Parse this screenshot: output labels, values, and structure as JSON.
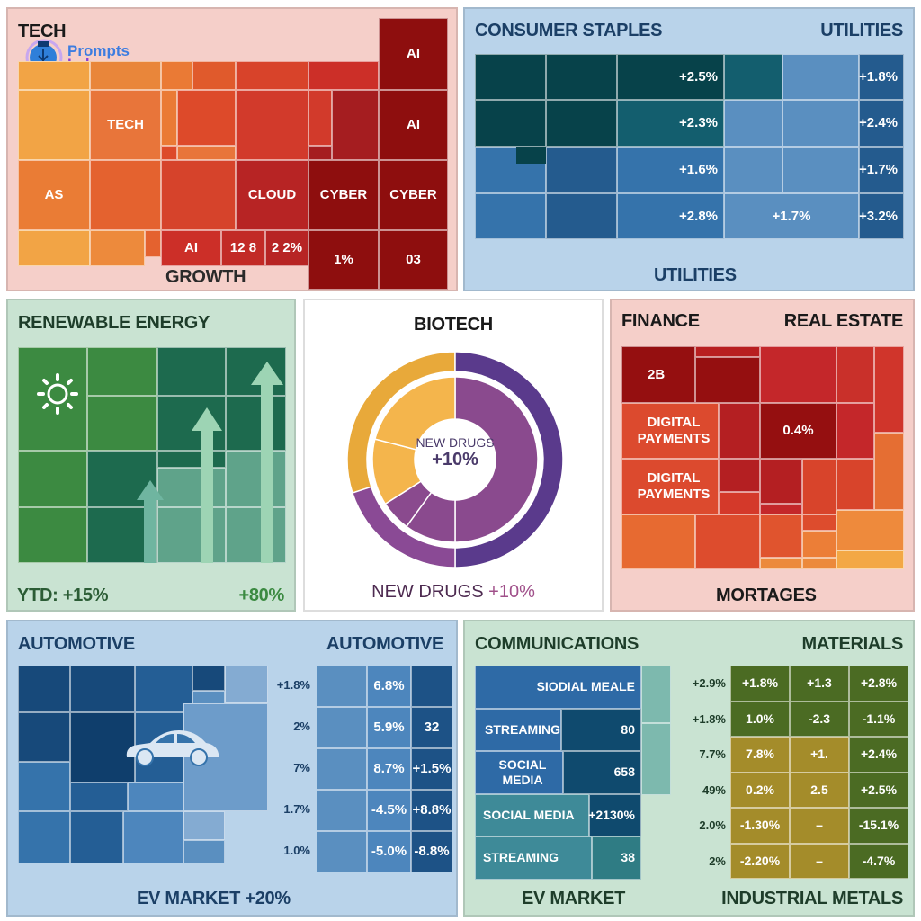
{
  "logo": {
    "line1": "Prompts",
    "line2": "Lab"
  },
  "colors": {
    "tech_bg": "#f5cfc9",
    "staples_bg": "#b9d3ea",
    "energy_bg": "#c9e3d2",
    "biotech_bg": "#ffffff",
    "finance_bg": "#f5cfc9",
    "auto_bg": "#b9d3ea",
    "comm_bg": "#c9e3d2"
  },
  "chart_data": [
    {
      "type": "heatmap",
      "title": "TECH",
      "footer": "GROWTH",
      "labels": [
        "AI",
        "TECH",
        "AI",
        "AS",
        "CLOUD",
        "CYBER",
        "CYBER",
        "AI",
        "12 8",
        "2 2%",
        "1%",
        "03"
      ]
    },
    {
      "type": "heatmap",
      "title": "CONSUMER STAPLES",
      "title_right": "UTILITIES",
      "footer": "UTILITIES",
      "rows": [
        {
          "mid": "+2.5%",
          "right": "+1.8%"
        },
        {
          "mid": "+2.3%",
          "right": "+2.4%"
        },
        {
          "mid": "+1.6%",
          "right": "+1.7%"
        },
        {
          "mid": "+2.8%",
          "util": "+1.7%",
          "right": "+3.2%"
        }
      ]
    },
    {
      "type": "heatmap",
      "title": "RENEWABLE ENERGY",
      "footer_left": "YTD: +15%",
      "footer_right": "+80%",
      "icon": "sun-icon"
    },
    {
      "type": "pie",
      "title": "BIOTECH",
      "center_label": "NEW DRUGS",
      "center_value": "+10%",
      "footer_label": "NEW DRUGS",
      "footer_value": "+10%",
      "outer_ring": [
        {
          "name": "orange",
          "value": 0.3,
          "color": "#e8a93a"
        },
        {
          "name": "dark-purple",
          "value": 0.5,
          "color": "#5a3a8c"
        },
        {
          "name": "purple",
          "value": 0.2,
          "color": "#8a4a95"
        }
      ],
      "inner_ring": [
        {
          "name": "purple-large",
          "value": 0.5,
          "color": "#8a4a8e"
        },
        {
          "name": "purple-mid",
          "value": 0.1,
          "color": "#8a4a8e"
        },
        {
          "name": "purple-small",
          "value": 0.06,
          "color": "#8a4a8e"
        },
        {
          "name": "orange-small",
          "value": 0.13,
          "color": "#f4b54c"
        },
        {
          "name": "orange-large",
          "value": 0.21,
          "color": "#f4b54c"
        }
      ]
    },
    {
      "type": "heatmap",
      "title": "FINANCE",
      "title_right": "REAL ESTATE",
      "footer": "MORTAGES",
      "labels": [
        "2B",
        "DIGITAL PAYMENTS",
        "DIGITAL PAYMENTS",
        "0.4%"
      ]
    },
    {
      "type": "heatmap",
      "title": "AUTOMOTIVE",
      "title_right": "AUTOMOTIVE",
      "footer": "EV MARKET +20%",
      "icon": "car-icon",
      "row_labels": [
        "+1.8%",
        "2%",
        "7%",
        "1.7%",
        "1.0%"
      ],
      "col2": [
        "6.8%",
        "5.9%",
        "8.7%",
        "-4.5%",
        "-5.0%"
      ],
      "col3": [
        "",
        "32",
        "+1.5%",
        "+8.8%",
        "-8.8%"
      ]
    },
    {
      "type": "heatmap",
      "title": "COMMUNICATIONS",
      "title_right": "MATERIALS",
      "footer_left": "EV MARKET",
      "footer_right": "INDUSTRIAL METALS",
      "comm_rows": [
        {
          "label": "SIODIAL MEALE",
          "value": ""
        },
        {
          "label": "STREAMING",
          "value": "80"
        },
        {
          "label": "SOCIAL MEDIA",
          "value": "658"
        },
        {
          "label": "SOCIAL MEDIA",
          "value": "+2130%"
        },
        {
          "label": "STREAMING",
          "value": "38"
        }
      ],
      "row_labels": [
        "+2.9%",
        "+1.8%",
        "7.7%",
        "49%",
        "2.0%",
        "2%"
      ],
      "grid": [
        [
          "+1.8%",
          "+1.3",
          "+2.8%"
        ],
        [
          "1.0%",
          "-2.3",
          "-1.1%"
        ],
        [
          "7.8%",
          "+1.",
          "+2.4%"
        ],
        [
          "0.2%",
          "2.5",
          "+2.5%"
        ],
        [
          "-1.30%",
          "–",
          "-15.1%"
        ],
        [
          "-2.20%",
          "–",
          "-4.7%"
        ]
      ]
    }
  ]
}
